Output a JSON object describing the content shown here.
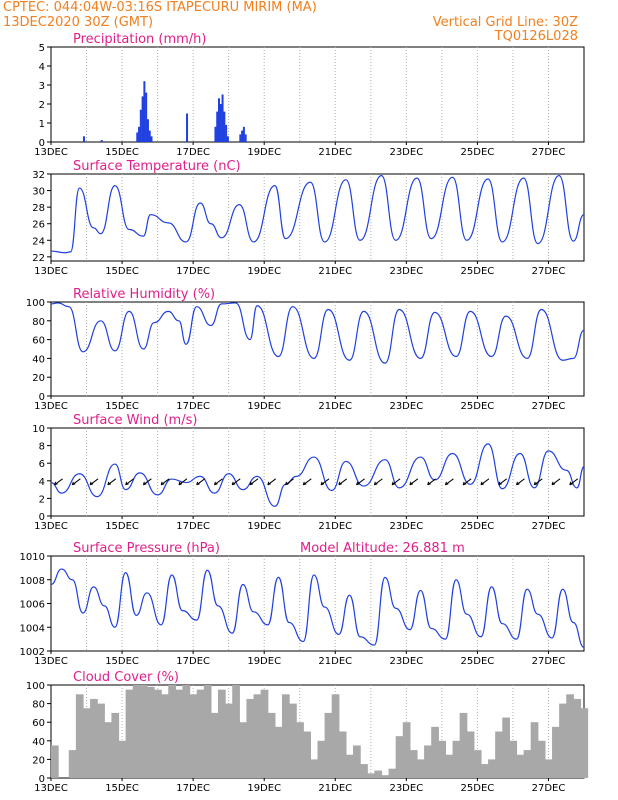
{
  "header": {
    "line1": "CPTEC:   044:04W-03:16S   ITAPECURU MIRIM (MA)",
    "line2": "13DEC2020 30Z (GMT)",
    "vgrid": "Vertical Grid Line: 30Z",
    "code": "TQ0126L028"
  },
  "colors": {
    "header": "#f08020",
    "title": "#e0208a",
    "line": "#2040e0",
    "cloud": "#a8a8a8"
  },
  "x_labels": [
    "13DEC",
    "15DEC",
    "17DEC",
    "19DEC",
    "21DEC",
    "23DEC",
    "25DEC",
    "27DEC"
  ],
  "chart_data": [
    {
      "type": "bar",
      "title": "Precipitation (mm/h)",
      "ylim": [
        0,
        5
      ],
      "yticks": [
        0,
        1,
        2,
        3,
        4,
        5
      ],
      "x_range_days": [
        0,
        15
      ],
      "series": [
        {
          "x": [
            0.9,
            1.4,
            2.4,
            2.45,
            2.5,
            2.55,
            2.6,
            2.65,
            2.7,
            2.75,
            2.8,
            3.8,
            4.6,
            4.65,
            4.7,
            4.75,
            4.8,
            4.85,
            4.9,
            4.95,
            5.3,
            5.35,
            5.4,
            5.45
          ],
          "values": [
            0.3,
            0.1,
            0.5,
            0.8,
            1.7,
            2.4,
            3.2,
            2.6,
            1.2,
            0.6,
            0.3,
            1.5,
            0.8,
            1.6,
            2.3,
            2.0,
            2.5,
            1.6,
            0.9,
            0.3,
            0.4,
            0.6,
            0.8,
            0.4
          ]
        }
      ]
    },
    {
      "type": "line",
      "title": "Surface Temperature (nC)",
      "ylim": [
        21.5,
        32
      ],
      "yticks": [
        22,
        24,
        26,
        28,
        30,
        32
      ],
      "series": [
        {
          "x": [
            0,
            0.4,
            0.55,
            0.8,
            1.2,
            1.4,
            1.8,
            2.2,
            2.6,
            2.8,
            3.3,
            3.8,
            4.2,
            4.5,
            4.8,
            5.3,
            5.7,
            6.3,
            6.6,
            7.3,
            7.7,
            8.3,
            8.7,
            9.3,
            9.7,
            10.3,
            10.7,
            11.3,
            11.7,
            12.3,
            12.7,
            13.3,
            13.7,
            14.3,
            14.7,
            15
          ],
          "values": [
            22.7,
            22.5,
            22.6,
            30.3,
            25.5,
            24.8,
            30.6,
            25.3,
            24.5,
            27.1,
            26.1,
            23.8,
            28.5,
            26.0,
            24.3,
            28.3,
            23.8,
            30.6,
            24.2,
            31.0,
            23.8,
            31.3,
            24.0,
            31.8,
            24.0,
            31.5,
            24.2,
            31.6,
            24.0,
            31.4,
            23.8,
            31.5,
            23.6,
            31.8,
            23.9,
            27.1
          ]
        }
      ]
    },
    {
      "type": "line",
      "title": "Relative Humidity (%)",
      "ylim": [
        0,
        100
      ],
      "yticks": [
        0,
        20,
        40,
        60,
        80,
        100
      ],
      "series": [
        {
          "x": [
            0,
            0.2,
            0.5,
            0.9,
            1.4,
            1.8,
            2.2,
            2.6,
            2.9,
            3.3,
            3.6,
            3.8,
            4.1,
            4.5,
            4.8,
            5.2,
            5.6,
            5.8,
            6.4,
            6.8,
            7.4,
            7.8,
            8.4,
            8.8,
            9.4,
            9.8,
            10.4,
            10.8,
            11.4,
            11.8,
            12.4,
            12.8,
            13.4,
            13.8,
            14.4,
            14.7,
            15
          ],
          "values": [
            98,
            99,
            95,
            47,
            80,
            48,
            90,
            50,
            78,
            90,
            80,
            55,
            95,
            75,
            98,
            99,
            60,
            96,
            42,
            95,
            40,
            92,
            38,
            90,
            35,
            92,
            40,
            89,
            42,
            90,
            42,
            85,
            40,
            92,
            38,
            40,
            70
          ]
        }
      ]
    },
    {
      "type": "line",
      "title": "Surface Wind (m/s)",
      "ylim": [
        0,
        10
      ],
      "yticks": [
        0,
        2,
        4,
        6,
        8,
        10
      ],
      "series": [
        {
          "x": [
            0,
            0.3,
            0.8,
            1.3,
            1.8,
            2.1,
            2.5,
            3.0,
            3.4,
            3.8,
            4.2,
            4.6,
            5.0,
            5.4,
            5.8,
            6.3,
            6.6,
            6.9,
            7.4,
            7.9,
            8.3,
            8.8,
            9.4,
            9.8,
            10.4,
            10.8,
            11.3,
            11.8,
            12.3,
            12.7,
            13.2,
            13.6,
            14.0,
            14.5,
            14.8,
            15
          ],
          "values": [
            3.8,
            2.6,
            4.8,
            2.2,
            5.9,
            3.0,
            4.9,
            2.4,
            4.2,
            3.8,
            4.5,
            2.6,
            4.8,
            3.0,
            4.5,
            1.1,
            3.6,
            4.5,
            6.7,
            2.9,
            6.2,
            3.4,
            6.4,
            3.2,
            6.7,
            4.1,
            7.1,
            3.6,
            8.2,
            3.1,
            7.1,
            3.2,
            7.4,
            5.2,
            3.2,
            5.6
          ]
        }
      ]
    },
    {
      "type": "line",
      "title": "Surface Pressure (hPa)",
      "annotation": "Model Altitude: 26.881  m",
      "ylim": [
        1002,
        1010
      ],
      "yticks": [
        1002,
        1004,
        1006,
        1008,
        1010
      ],
      "series": [
        {
          "x": [
            0,
            0.3,
            0.6,
            0.9,
            1.2,
            1.5,
            1.8,
            2.1,
            2.4,
            2.7,
            3.1,
            3.4,
            3.7,
            4.1,
            4.4,
            4.7,
            5.1,
            5.4,
            5.7,
            6.1,
            6.4,
            6.7,
            7.1,
            7.4,
            7.7,
            8.1,
            8.4,
            8.7,
            9.1,
            9.4,
            9.7,
            10.1,
            10.4,
            10.7,
            11.1,
            11.4,
            11.7,
            12.1,
            12.4,
            12.7,
            13.1,
            13.4,
            13.7,
            14.1,
            14.4,
            14.7,
            15
          ],
          "values": [
            1007.6,
            1008.9,
            1008.0,
            1005.2,
            1007.4,
            1005.8,
            1004.0,
            1008.6,
            1005.0,
            1006.9,
            1004.2,
            1008.4,
            1005.4,
            1004.6,
            1008.8,
            1005.8,
            1003.5,
            1007.6,
            1005.3,
            1004.2,
            1008.2,
            1004.4,
            1002.8,
            1008.4,
            1005.7,
            1003.4,
            1006.7,
            1003.2,
            1002.5,
            1008.2,
            1005.6,
            1003.8,
            1007.1,
            1003.9,
            1003.0,
            1008.0,
            1005.1,
            1003.2,
            1007.4,
            1004.3,
            1003.0,
            1007.2,
            1005.1,
            1003.1,
            1007.2,
            1004.4,
            1002.3
          ]
        }
      ]
    },
    {
      "type": "bar",
      "title": "Cloud Cover (%)",
      "ylim": [
        0,
        100
      ],
      "yticks": [
        0,
        20,
        40,
        60,
        80,
        100
      ],
      "series": [
        {
          "x": [
            0,
            0.5,
            0.7,
            0.9,
            1.1,
            1.3,
            1.5,
            1.7,
            1.9,
            2.1,
            2.3,
            2.5,
            2.7,
            2.9,
            3.1,
            3.3,
            3.5,
            3.7,
            3.9,
            4.1,
            4.3,
            4.5,
            4.7,
            4.9,
            5.1,
            5.3,
            5.5,
            5.7,
            5.9,
            6.1,
            6.3,
            6.5,
            6.7,
            6.9,
            7.1,
            7.3,
            7.5,
            7.7,
            7.9,
            8.1,
            8.3,
            8.5,
            8.7,
            8.9,
            9.1,
            9.3,
            9.5,
            9.7,
            9.9,
            10.1,
            10.3,
            10.5,
            10.7,
            10.9,
            11.1,
            11.3,
            11.5,
            11.7,
            11.9,
            12.1,
            12.3,
            12.5,
            12.7,
            12.9,
            13.1,
            13.3,
            13.5,
            13.7,
            13.9,
            14.1,
            14.3,
            14.5,
            14.7,
            14.9
          ],
          "values": [
            35,
            30,
            90,
            75,
            85,
            80,
            60,
            70,
            40,
            95,
            100,
            100,
            98,
            95,
            90,
            100,
            95,
            100,
            90,
            95,
            100,
            70,
            95,
            80,
            100,
            60,
            85,
            90,
            95,
            70,
            55,
            90,
            80,
            60,
            50,
            20,
            40,
            70,
            90,
            50,
            25,
            35,
            15,
            5,
            8,
            3,
            10,
            45,
            60,
            30,
            20,
            35,
            55,
            40,
            25,
            40,
            70,
            50,
            30,
            15,
            20,
            50,
            65,
            40,
            25,
            30,
            60,
            40,
            20,
            55,
            80,
            90,
            85,
            75
          ]
        }
      ]
    }
  ]
}
